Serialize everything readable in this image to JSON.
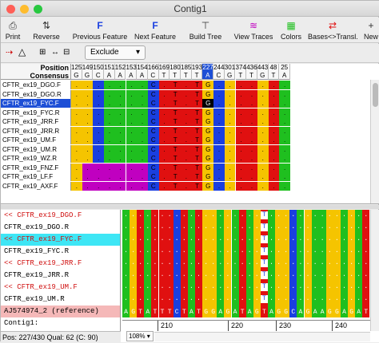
{
  "window": {
    "title": "Contig1"
  },
  "toolbar": {
    "print": "Print",
    "reverse": "Reverse",
    "previous_feature": "Previous Feature",
    "next_feature": "Next Feature",
    "build_tree": "Build Tree",
    "view_traces": "View Traces",
    "colors": "Colors",
    "bases_transl": "Bases<>Transl.",
    "new": "New"
  },
  "modebar": {
    "exclude": "Exclude"
  },
  "upper": {
    "header_position": "Position",
    "header_consensus": "Consensus",
    "positions": [
      "125",
      "149",
      "150",
      "151",
      "152",
      "153",
      "154",
      "166",
      "169",
      "180",
      "185",
      "193",
      "227",
      "244",
      "301",
      "374",
      "436",
      "443",
      "48",
      "25"
    ],
    "consensus": [
      "G",
      "G",
      "C",
      "A",
      "A",
      "A",
      "A",
      "C",
      "T",
      "T",
      "T",
      "T",
      "A",
      "C",
      "G",
      "T",
      "T",
      "G",
      "T",
      "A"
    ],
    "rows": [
      {
        "name": "CFTR_ex19_DGO.F",
        "selected": false
      },
      {
        "name": "CFTR_ex19_DGO.R",
        "selected": false
      },
      {
        "name": "CFTR_ex19_FYC.F",
        "selected": true
      },
      {
        "name": "CFTR_ex19_FYC.R",
        "selected": false
      },
      {
        "name": "CFTR_ex19_JRR.F",
        "selected": false
      },
      {
        "name": "CFTR_ex19_JRR.R",
        "selected": false
      },
      {
        "name": "CFTR_ex19_UM.F",
        "selected": false
      },
      {
        "name": "CFTR_ex19_UM.R",
        "selected": false
      },
      {
        "name": "CFTR_ex19_WZ.R",
        "selected": false
      },
      {
        "name": "CFTR_ex19_FNZ.F",
        "selected": false
      },
      {
        "name": "CFTR_ex19_LF.F",
        "selected": false
      },
      {
        "name": "CFTR_ex19_AXF.F",
        "selected": false
      }
    ]
  },
  "lower": {
    "names": [
      {
        "text": "<< CFTR_ex19_DGO.F",
        "style": "red"
      },
      {
        "text": "CFTR_ex19_DGO.R",
        "style": "black"
      },
      {
        "text": "<< CFTR_ex19_FYC.F",
        "style": "cyan"
      },
      {
        "text": "CFTR_ex19_FYC.R",
        "style": "black"
      },
      {
        "text": "<< CFTR_ex19_JRR.F",
        "style": "red"
      },
      {
        "text": "CFTR_ex19_JRR.R",
        "style": "black"
      },
      {
        "text": "<< CFTR_ex19_UM.F",
        "style": "red"
      },
      {
        "text": "CFTR_ex19_UM.R",
        "style": "black"
      },
      {
        "text": "AJ574974_2 (reference)",
        "style": "pink"
      },
      {
        "text": "Contig1:",
        "style": "black"
      }
    ],
    "reference": "AGTATTTCTATGGAGATAGTAGGCAGAAGGAGAT",
    "ruler": [
      "210",
      "220",
      "230",
      "240"
    ],
    "status": "Pos: 227/430  Qual: 62 (C: 90)",
    "zoom": "108%"
  },
  "colors": {
    "A": "#1fbf1f",
    "C": "#1a3fe0",
    "G": "#f5c400",
    "T": "#e01010",
    "N": "#c000c0",
    "select": "#1d4fd6",
    "cyan": "#3ee6f5",
    "pink": "#f5b8b8",
    "red": "#d01010"
  }
}
